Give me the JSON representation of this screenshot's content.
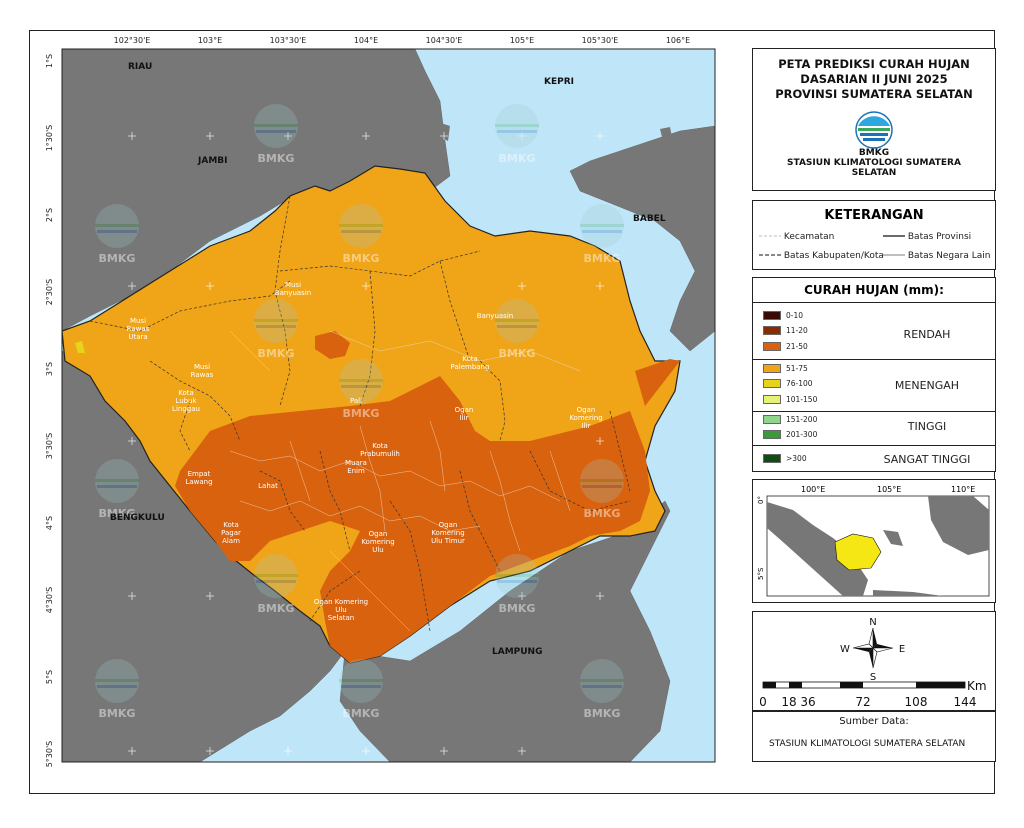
{
  "title": {
    "line1": "PETA PREDIKSI CURAH HUJAN",
    "line2": "DASARIAN II JUNI 2025",
    "line3": "PROVINSI SUMATERA SELATAN"
  },
  "station": {
    "logo_text": "BMKG",
    "line1": "STASIUN KLIMATOLOGI SUMATERA",
    "line2": "SELATAN"
  },
  "keterangan": {
    "title": "KETERANGAN",
    "kecamatan": "Kecamatan",
    "batas_provinsi": "Batas Provinsi",
    "batas_kab": "Batas Kabupaten/Kota",
    "batas_negara": "Batas Negara Lain"
  },
  "curah_hujan": {
    "title": "CURAH HUJAN (mm):",
    "classes": [
      {
        "range": "0-10",
        "color": "#3a0a05"
      },
      {
        "range": "11-20",
        "color": "#8b2c00"
      },
      {
        "range": "21-50",
        "color": "#d9620f"
      },
      {
        "range": "51-75",
        "color": "#f0a418"
      },
      {
        "range": "76-100",
        "color": "#e7d31a"
      },
      {
        "range": "101-150",
        "color": "#e6f07a"
      },
      {
        "range": "151-200",
        "color": "#8fd58b"
      },
      {
        "range": "201-300",
        "color": "#3c9a3c"
      },
      {
        "range": ">300",
        "color": "#0f4d12"
      }
    ],
    "categories": [
      "RENDAH",
      "MENENGAH",
      "TINGGI",
      "SANGAT TINGGI"
    ]
  },
  "inset": {
    "lon_labels": [
      "100°E",
      "105°E",
      "110°E"
    ],
    "lat_labels": [
      "0°",
      "5°S"
    ]
  },
  "compass": {
    "n": "N",
    "s": "S",
    "e": "E",
    "w": "W"
  },
  "scale": {
    "unit": "Km",
    "ticks": [
      "0",
      "18",
      "36",
      "72",
      "108",
      "144"
    ]
  },
  "source": {
    "label": "Sumber Data:",
    "value": "STASIUN KLIMATOLOGI SUMATERA SELATAN"
  },
  "grid": {
    "lon_labels": [
      "102°30'E",
      "103°E",
      "103°30'E",
      "104°E",
      "104°30'E",
      "105°E",
      "105°30'E",
      "106°E"
    ],
    "lat_labels": [
      "1°S",
      "1°30'S",
      "2°S",
      "2°30'S",
      "3°S",
      "3°30'S",
      "4°S",
      "4°30'S",
      "5°S",
      "5°30'S"
    ]
  },
  "regions": {
    "riau": "RIAU",
    "jambi": "JAMBI",
    "kepri": "KEPRI",
    "babel": "BABEL",
    "bengkulu": "BENGKULU",
    "lampung": "LAMPUNG"
  },
  "districts": {
    "musi_rawas_utara": [
      "Musi",
      "Rawas",
      "Utara"
    ],
    "musi_banyuasin": [
      "Musi",
      "Banyuasin"
    ],
    "banyuasin": [
      "Banyuasin"
    ],
    "musi_rawas": [
      "Musi",
      "Rawas"
    ],
    "lubuk_linggau": [
      "Kota",
      "Lubuk",
      "Linggau"
    ],
    "palembang": [
      "Kota",
      "Palembang"
    ],
    "pali": [
      "Pali"
    ],
    "ogan_ilir": [
      "Ogan",
      "Ilir"
    ],
    "oki": [
      "Ogan",
      "Komering",
      "Ilir"
    ],
    "prabumulih": [
      "Kota",
      "Prabumulih"
    ],
    "empat_lawang": [
      "Empat",
      "Lawang"
    ],
    "lahat": [
      "Lahat"
    ],
    "muara_enim": [
      "Muara",
      "Enim"
    ],
    "pagar_alam": [
      "Kota",
      "Pagar",
      "Alam"
    ],
    "oku": [
      "Ogan",
      "Komering",
      "Ulu"
    ],
    "oku_timur": [
      "Ogan",
      "Komering",
      "Ulu Timur"
    ],
    "oku_selatan": [
      "Ogan Komering",
      "Ulu",
      "Selatan"
    ]
  },
  "watermark": "BMKG"
}
